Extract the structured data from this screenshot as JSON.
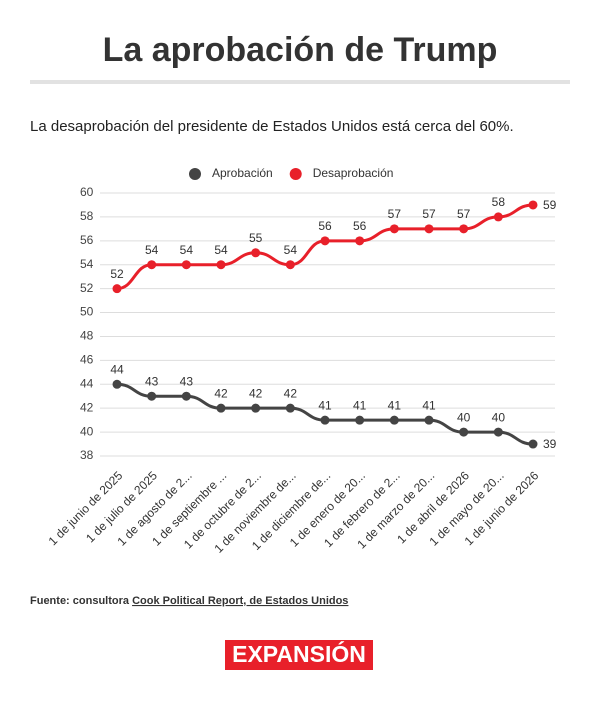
{
  "header": {
    "title": "La aprobación de Trump",
    "subtitle": "La desaprobación del presidente de Estados Unidos está cerca del 60%."
  },
  "chart_data": {
    "type": "line",
    "categories": [
      "1 de junio de 2025",
      "1 de julio de 2025",
      "1 de agosto de 2...",
      "1 de septiembre ...",
      "1 de octubre de 2...",
      "1 de noviembre de...",
      "1 de diciembre de...",
      "1 de enero de 20...",
      "1 de febrero de 2...",
      "1 de marzo de 20...",
      "1 de abril de 2026",
      "1 de mayo de 20...",
      "1 de junio de 2026"
    ],
    "series": [
      {
        "name": "Aprobación",
        "color": "#444444",
        "values": [
          44,
          43,
          43,
          42,
          42,
          42,
          41,
          41,
          41,
          41,
          40,
          40,
          39
        ]
      },
      {
        "name": "Desaprobación",
        "color": "#e8202a",
        "values": [
          52,
          54,
          54,
          54,
          55,
          54,
          56,
          56,
          57,
          57,
          57,
          58,
          59
        ]
      }
    ],
    "ylim": [
      38,
      60
    ],
    "yticks": [
      38,
      40,
      42,
      44,
      46,
      48,
      50,
      52,
      54,
      56,
      58,
      60
    ],
    "grid": true,
    "legend": "top"
  },
  "footer": {
    "source_prefix": "Fuente: consultora ",
    "source_link": "Cook Political Report, de Estados Unidos",
    "logo": "EXPANSIÓN"
  }
}
